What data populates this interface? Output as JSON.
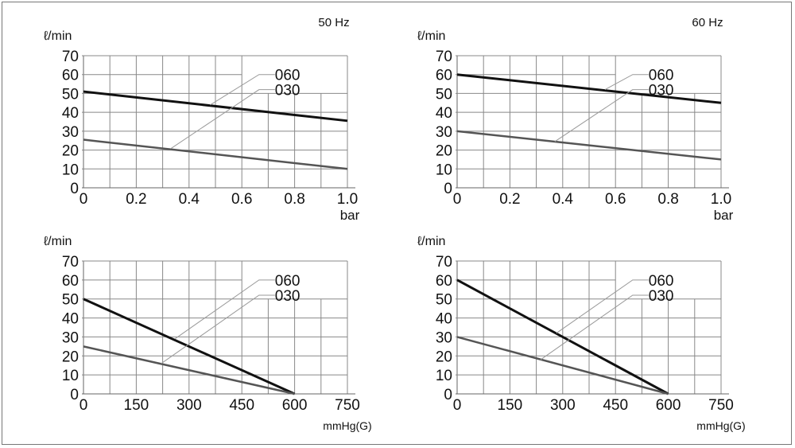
{
  "chart_data": [
    {
      "type": "line",
      "title": "50 Hz",
      "ylabel": "ℓ/min",
      "xlabel": "bar",
      "xlim": [
        0,
        1.0
      ],
      "ylim": [
        0,
        70
      ],
      "xticks": [
        "0",
        "0.2",
        "0.4",
        "0.6",
        "0.8",
        "1.0"
      ],
      "xtick_values": [
        0,
        0.2,
        0.4,
        0.6,
        0.8,
        1.0
      ],
      "yticks": [
        "0",
        "10",
        "20",
        "30",
        "40",
        "50",
        "60",
        "70"
      ],
      "grid": true,
      "series": [
        {
          "name": "060",
          "x": [
            0,
            1.0
          ],
          "y": [
            51,
            35.5
          ],
          "color": "#111111"
        },
        {
          "name": "030",
          "x": [
            0,
            1.0
          ],
          "y": [
            25.5,
            10
          ],
          "color": "#555555"
        }
      ]
    },
    {
      "type": "line",
      "title": "60 Hz",
      "ylabel": "ℓ/min",
      "xlabel": "bar",
      "xlim": [
        0,
        1.0
      ],
      "ylim": [
        0,
        70
      ],
      "xticks": [
        "0",
        "0.2",
        "0.4",
        "0.6",
        "0.8",
        "1.0"
      ],
      "xtick_values": [
        0,
        0.2,
        0.4,
        0.6,
        0.8,
        1.0
      ],
      "yticks": [
        "0",
        "10",
        "20",
        "30",
        "40",
        "50",
        "60",
        "70"
      ],
      "grid": true,
      "series": [
        {
          "name": "060",
          "x": [
            0,
            1.0
          ],
          "y": [
            60,
            45
          ],
          "color": "#111111"
        },
        {
          "name": "030",
          "x": [
            0,
            1.0
          ],
          "y": [
            30,
            15
          ],
          "color": "#555555"
        }
      ]
    },
    {
      "type": "line",
      "title": "",
      "ylabel": "ℓ/min",
      "xlabel": "mmHg(G)",
      "xlim": [
        0,
        750
      ],
      "ylim": [
        0,
        70
      ],
      "xticks": [
        "0",
        "150",
        "300",
        "450",
        "600",
        "750"
      ],
      "xtick_values": [
        0,
        150,
        300,
        450,
        600,
        750
      ],
      "yticks": [
        "0",
        "10",
        "20",
        "30",
        "40",
        "50",
        "60",
        "70"
      ],
      "grid": true,
      "series": [
        {
          "name": "060",
          "x": [
            0,
            600
          ],
          "y": [
            50,
            0
          ],
          "color": "#111111"
        },
        {
          "name": "030",
          "x": [
            0,
            600
          ],
          "y": [
            25,
            0
          ],
          "color": "#555555"
        }
      ]
    },
    {
      "type": "line",
      "title": "",
      "ylabel": "ℓ/min",
      "xlabel": "mmHg(G)",
      "xlim": [
        0,
        750
      ],
      "ylim": [
        0,
        70
      ],
      "xticks": [
        "0",
        "150",
        "300",
        "450",
        "600",
        "750"
      ],
      "xtick_values": [
        0,
        150,
        300,
        450,
        600,
        750
      ],
      "yticks": [
        "0",
        "10",
        "20",
        "30",
        "40",
        "50",
        "60",
        "70"
      ],
      "grid": true,
      "series": [
        {
          "name": "060",
          "x": [
            0,
            600
          ],
          "y": [
            60,
            0
          ],
          "color": "#111111"
        },
        {
          "name": "030",
          "x": [
            0,
            600
          ],
          "y": [
            30,
            0
          ],
          "color": "#555555"
        }
      ]
    }
  ]
}
